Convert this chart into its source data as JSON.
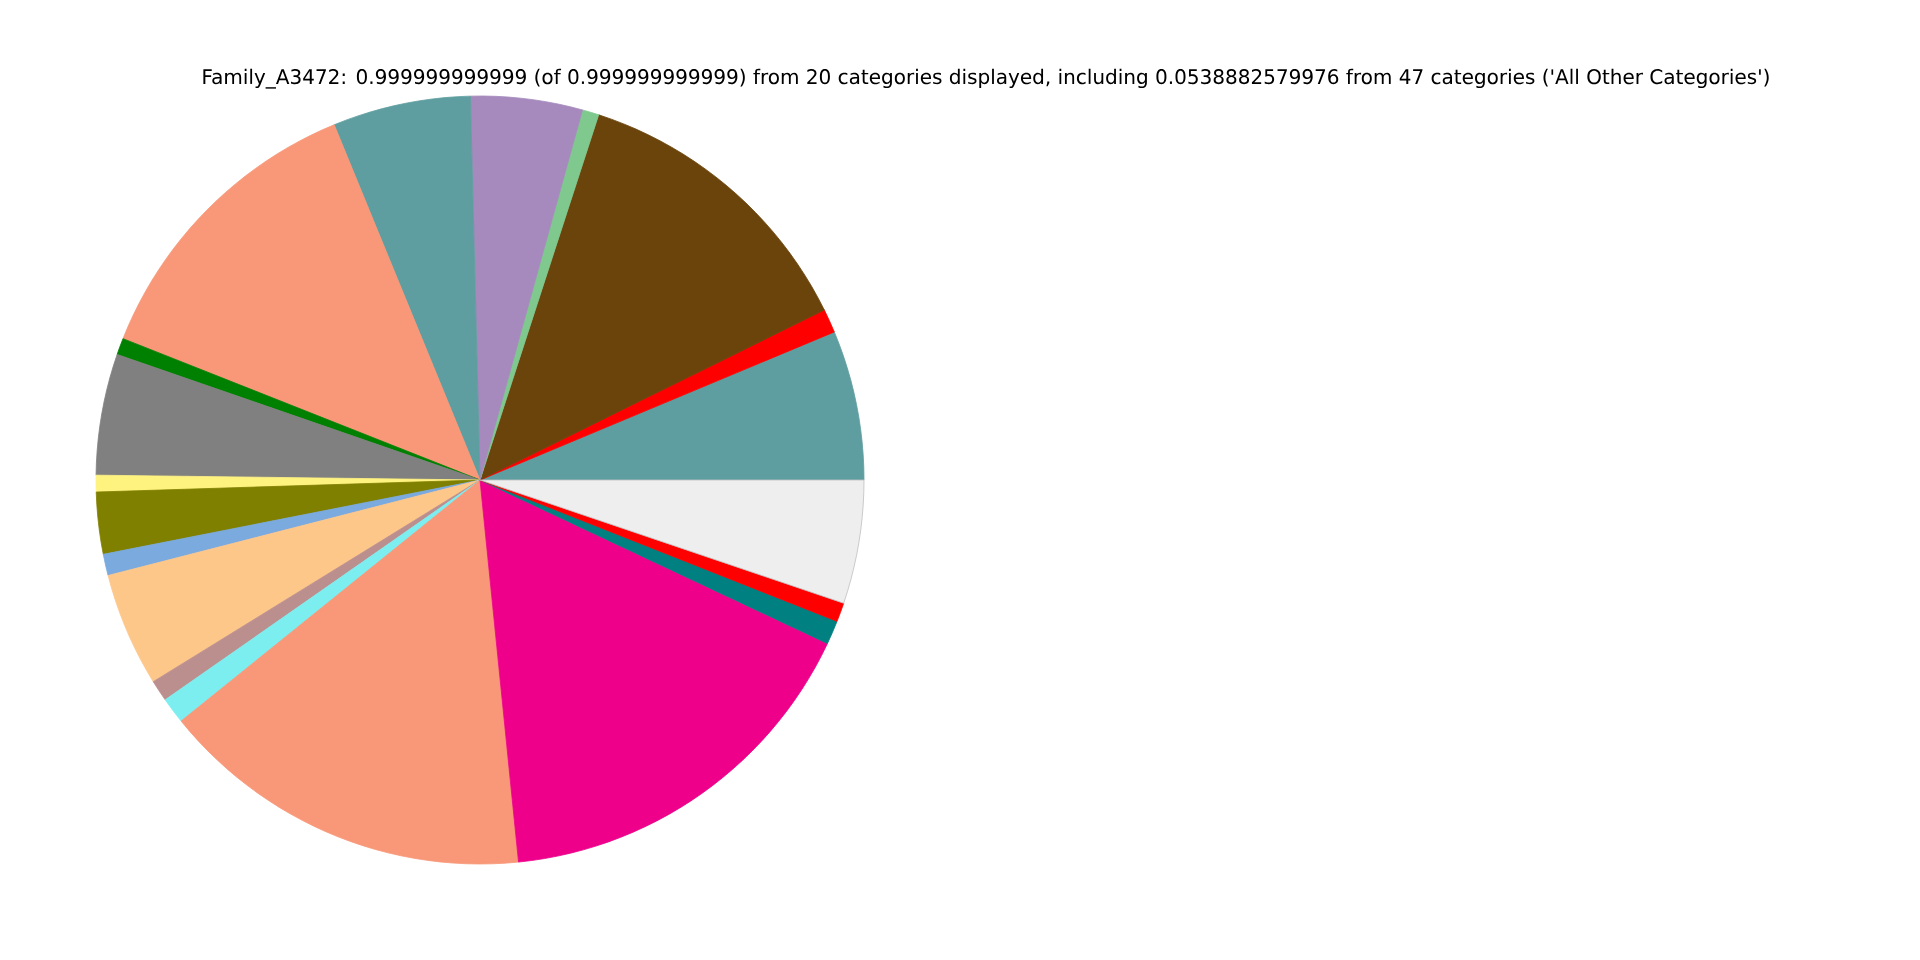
{
  "chart_data": {
    "type": "pie",
    "title": "Family_A3472: 0.999999999999 (of 0.999999999999) from 20 categories displayed, including 0.0538882579976 from 47 categories ('All Other Categories')",
    "categories": [
      null,
      null,
      null,
      null,
      null,
      null,
      null,
      null,
      null,
      null,
      null,
      null,
      null,
      null,
      null,
      null,
      null,
      null,
      null,
      null
    ],
    "values": [
      6.3,
      1.0,
      12.7,
      0.7,
      4.7,
      5.8,
      12.8,
      0.7,
      5.1,
      0.7,
      2.6,
      0.9,
      4.8,
      0.9,
      1.1,
      15.8,
      16.4,
      1.0,
      0.8,
      5.2
    ],
    "colors": [
      "#5f9ea0",
      "#ff0000",
      "#6b440b",
      "#7fc98f",
      "#a689bd",
      "#5f9ea0",
      "#f89878",
      "#008000",
      "#808080",
      "#fff380",
      "#808000",
      "#7aaade",
      "#fec78a",
      "#bc8f8f",
      "#7deef0",
      "#f89878",
      "#ee008a",
      "#008080",
      "#ff0000",
      "#eeeeee"
    ]
  }
}
